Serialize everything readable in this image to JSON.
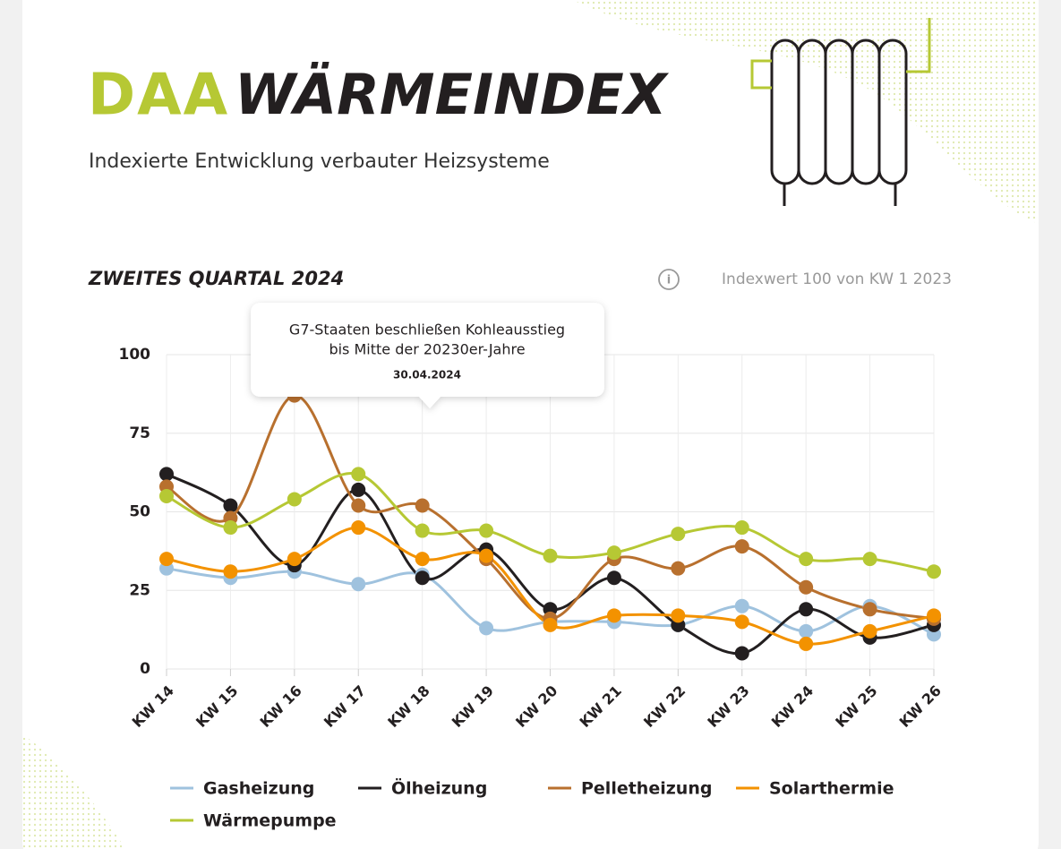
{
  "header": {
    "logo": "DAA",
    "title": "WÄRMEINDEX",
    "subtitle": "Indexierte Entwicklung verbauter Heizsysteme"
  },
  "chart_data": {
    "type": "line",
    "title": "ZWEITES QUARTAL 2024",
    "note": "Indexwert 100 von KW 1 2023",
    "annotation": {
      "lines": [
        "G7-Staaten beschließen Kohleausstieg",
        "bis Mitte der 20230er-Jahre"
      ],
      "date": "30.04.2024"
    },
    "categories": [
      "KW 14",
      "KW 15",
      "KW 16",
      "KW 17",
      "KW 18",
      "KW 19",
      "KW 20",
      "KW 21",
      "KW 22",
      "KW 23",
      "KW 24",
      "KW 25",
      "KW 26"
    ],
    "series": [
      {
        "name": "Gasheizung",
        "color": "#9fc2de",
        "values": [
          32,
          29,
          31,
          27,
          30,
          13,
          15,
          15,
          14,
          20,
          12,
          20,
          11
        ]
      },
      {
        "name": "Ölheizung",
        "color": "#231f20",
        "values": [
          62,
          52,
          33,
          57,
          29,
          38,
          19,
          29,
          14,
          5,
          19,
          10,
          14
        ]
      },
      {
        "name": "Pelletheizung",
        "color": "#b8702e",
        "values": [
          58,
          48,
          87,
          52,
          52,
          35,
          16,
          35,
          32,
          39,
          26,
          19,
          16
        ]
      },
      {
        "name": "Solarthermie",
        "color": "#f39200",
        "values": [
          35,
          31,
          35,
          45,
          35,
          36,
          14,
          17,
          17,
          15,
          8,
          12,
          17
        ]
      },
      {
        "name": "Wärmepumpe",
        "color": "#b6c834",
        "values": [
          55,
          45,
          54,
          62,
          44,
          44,
          36,
          37,
          43,
          45,
          35,
          35,
          31
        ]
      }
    ],
    "ylim": [
      0,
      100
    ],
    "yticks": [
      0,
      25,
      50,
      75,
      100
    ],
    "grid": true
  }
}
